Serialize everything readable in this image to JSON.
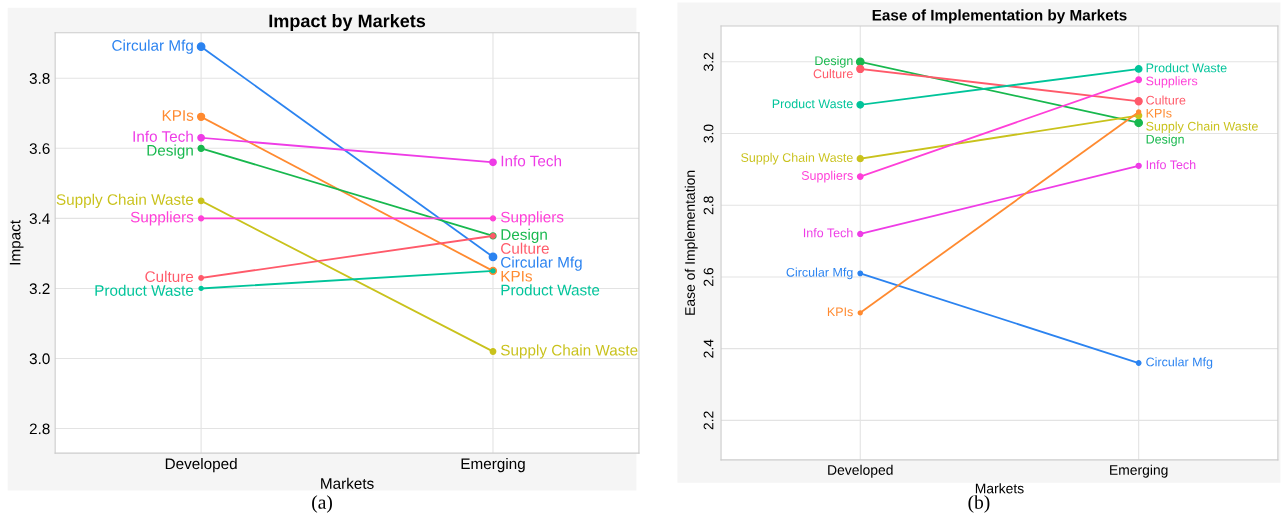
{
  "chart_data": [
    {
      "type": "line",
      "title": "Impact by Markets",
      "xlabel": "Markets",
      "ylabel": "Impact",
      "categories": [
        "Developed",
        "Emerging"
      ],
      "ylim": [
        2.73,
        3.93
      ],
      "yticks": [
        2.8,
        {
          "value": 3,
          "label": "3.0"
        },
        3.2,
        3.4,
        3.6,
        3.8
      ],
      "grid": true,
      "marker": "circle",
      "line_style": "solid",
      "legend": false,
      "annotations": [
        "(a)"
      ],
      "series": [
        {
          "name": "Circular Mfg",
          "color": "#2b83f0",
          "values": [
            3.89,
            3.29
          ]
        },
        {
          "name": "KPIs",
          "color": "#ff8a30",
          "values": [
            3.69,
            3.25
          ]
        },
        {
          "name": "Info Tech",
          "color": "#ee3ce6",
          "values": [
            3.63,
            3.56
          ]
        },
        {
          "name": "Design",
          "color": "#18b84e",
          "values": [
            3.6,
            3.35
          ]
        },
        {
          "name": "Supply Chain Waste",
          "color": "#c9c21c",
          "values": [
            3.45,
            3.02
          ]
        },
        {
          "name": "Suppliers",
          "color": "#ff3fd8",
          "values": [
            3.4,
            3.4
          ]
        },
        {
          "name": "Culture",
          "color": "#ff5a6a",
          "values": [
            3.23,
            3.35
          ]
        },
        {
          "name": "Product Waste",
          "color": "#00c49a",
          "values": [
            3.2,
            3.25
          ]
        }
      ]
    },
    {
      "type": "line",
      "title": "Ease of Implementation by Markets",
      "xlabel": "Markets",
      "ylabel": "Ease of Implementation",
      "categories": [
        "Developed",
        "Emerging"
      ],
      "ylim": [
        2.09,
        3.3
      ],
      "yticks": [
        2.2,
        2.4,
        2.6,
        2.8,
        {
          "value": 3,
          "label": "3.0"
        },
        3.2
      ],
      "grid": true,
      "marker": "circle",
      "line_style": "solid",
      "legend": false,
      "annotations": [
        "(b)"
      ],
      "series": [
        {
          "name": "Design",
          "color": "#18b84e",
          "values": [
            3.2,
            3.03
          ]
        },
        {
          "name": "Culture",
          "color": "#ff5a6a",
          "values": [
            3.18,
            3.09
          ]
        },
        {
          "name": "Product Waste",
          "color": "#00c49a",
          "values": [
            3.08,
            3.18
          ]
        },
        {
          "name": "Supply Chain Waste",
          "color": "#c9c21c",
          "values": [
            2.93,
            3.05
          ]
        },
        {
          "name": "Suppliers",
          "color": "#ff3fd8",
          "values": [
            2.88,
            3.15
          ]
        },
        {
          "name": "Info Tech",
          "color": "#ee3ce6",
          "values": [
            2.72,
            2.91
          ]
        },
        {
          "name": "Circular Mfg",
          "color": "#2b83f0",
          "values": [
            2.61,
            2.36
          ]
        },
        {
          "name": "KPIs",
          "color": "#ff8a30",
          "values": [
            2.5,
            3.06
          ]
        }
      ]
    }
  ]
}
